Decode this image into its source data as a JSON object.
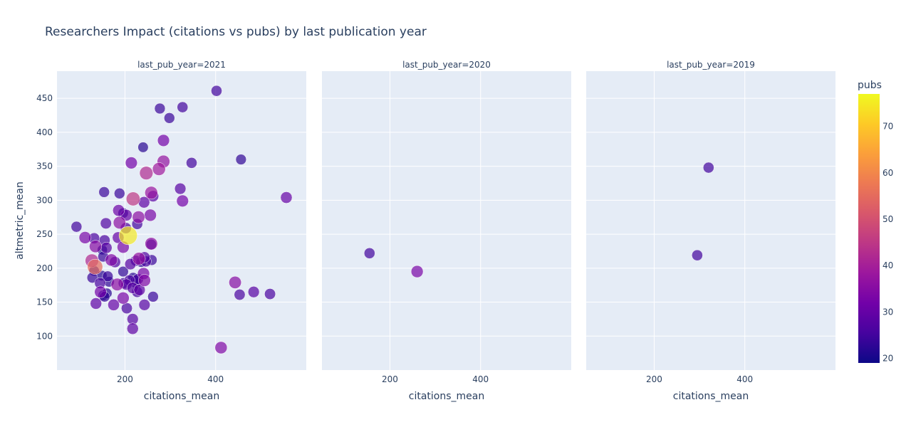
{
  "chart_data": {
    "type": "scatter",
    "title": "Researchers Impact (citations vs pubs) by last publication year",
    "xlabel": "citations_mean",
    "ylabel": "altmetric_mean",
    "xlim": [
      50,
      600
    ],
    "ylim": [
      50,
      490
    ],
    "x_ticks": [
      200,
      400
    ],
    "y_ticks": [
      100,
      150,
      200,
      250,
      300,
      350,
      400,
      450
    ],
    "grid": true,
    "colorbar": {
      "title": "pubs",
      "min": 19,
      "max": 77,
      "ticks": [
        20,
        30,
        40,
        50,
        60,
        70
      ]
    },
    "colorscale": [
      "#0d0887",
      "#46039f",
      "#7201a8",
      "#9c179e",
      "#bd3786",
      "#d8576b",
      "#ed7953",
      "#fb9f3a",
      "#fdca26",
      "#f0f921"
    ],
    "facets": [
      {
        "title": "last_pub_year=2021",
        "points": [
          {
            "x": 402,
            "y": 461,
            "pubs": 25
          },
          {
            "x": 277,
            "y": 435,
            "pubs": 24
          },
          {
            "x": 327,
            "y": 437,
            "pubs": 25
          },
          {
            "x": 298,
            "y": 421,
            "pubs": 24
          },
          {
            "x": 285,
            "y": 388,
            "pubs": 32
          },
          {
            "x": 240,
            "y": 378,
            "pubs": 22
          },
          {
            "x": 456,
            "y": 360,
            "pubs": 23
          },
          {
            "x": 285,
            "y": 357,
            "pubs": 37
          },
          {
            "x": 347,
            "y": 355,
            "pubs": 25
          },
          {
            "x": 214,
            "y": 355,
            "pubs": 32
          },
          {
            "x": 275,
            "y": 346,
            "pubs": 39
          },
          {
            "x": 247,
            "y": 340,
            "pubs": 42
          },
          {
            "x": 154,
            "y": 312,
            "pubs": 24
          },
          {
            "x": 188,
            "y": 310,
            "pubs": 24
          },
          {
            "x": 322,
            "y": 317,
            "pubs": 28
          },
          {
            "x": 258,
            "y": 311,
            "pubs": 38
          },
          {
            "x": 262,
            "y": 306,
            "pubs": 28
          },
          {
            "x": 218,
            "y": 302,
            "pubs": 45
          },
          {
            "x": 556,
            "y": 304,
            "pubs": 30
          },
          {
            "x": 327,
            "y": 299,
            "pubs": 32
          },
          {
            "x": 242,
            "y": 297,
            "pubs": 29
          },
          {
            "x": 186,
            "y": 285,
            "pubs": 31
          },
          {
            "x": 196,
            "y": 281,
            "pubs": 22
          },
          {
            "x": 203,
            "y": 278,
            "pubs": 30
          },
          {
            "x": 230,
            "y": 275,
            "pubs": 36
          },
          {
            "x": 256,
            "y": 278,
            "pubs": 33
          },
          {
            "x": 188,
            "y": 267,
            "pubs": 36
          },
          {
            "x": 158,
            "y": 266,
            "pubs": 27
          },
          {
            "x": 227,
            "y": 265,
            "pubs": 25
          },
          {
            "x": 93,
            "y": 261,
            "pubs": 25
          },
          {
            "x": 202,
            "y": 259,
            "pubs": 27
          },
          {
            "x": 112,
            "y": 245,
            "pubs": 33
          },
          {
            "x": 132,
            "y": 244,
            "pubs": 26
          },
          {
            "x": 185,
            "y": 245,
            "pubs": 30
          },
          {
            "x": 207,
            "y": 248,
            "pubs": 75
          },
          {
            "x": 155,
            "y": 241,
            "pubs": 26
          },
          {
            "x": 258,
            "y": 236,
            "pubs": 36
          },
          {
            "x": 258,
            "y": 235,
            "pubs": 22
          },
          {
            "x": 135,
            "y": 232,
            "pubs": 35
          },
          {
            "x": 159,
            "y": 230,
            "pubs": 28
          },
          {
            "x": 196,
            "y": 231,
            "pubs": 33
          },
          {
            "x": 150,
            "y": 227,
            "pubs": 20
          },
          {
            "x": 152,
            "y": 217,
            "pubs": 24
          },
          {
            "x": 127,
            "y": 211,
            "pubs": 42
          },
          {
            "x": 170,
            "y": 212,
            "pubs": 34
          },
          {
            "x": 224,
            "y": 211,
            "pubs": 25
          },
          {
            "x": 231,
            "y": 214,
            "pubs": 37
          },
          {
            "x": 243,
            "y": 216,
            "pubs": 27
          },
          {
            "x": 259,
            "y": 212,
            "pubs": 24
          },
          {
            "x": 236,
            "y": 209,
            "pubs": 22
          },
          {
            "x": 246,
            "y": 210,
            "pubs": 26
          },
          {
            "x": 178,
            "y": 209,
            "pubs": 27
          },
          {
            "x": 212,
            "y": 206,
            "pubs": 28
          },
          {
            "x": 134,
            "y": 202,
            "pubs": 55
          },
          {
            "x": 132,
            "y": 196,
            "pubs": 22
          },
          {
            "x": 196,
            "y": 195,
            "pubs": 23
          },
          {
            "x": 128,
            "y": 186,
            "pubs": 24
          },
          {
            "x": 149,
            "y": 189,
            "pubs": 22
          },
          {
            "x": 162,
            "y": 188,
            "pubs": 24
          },
          {
            "x": 241,
            "y": 192,
            "pubs": 33
          },
          {
            "x": 218,
            "y": 186,
            "pubs": 22
          },
          {
            "x": 224,
            "y": 182,
            "pubs": 24
          },
          {
            "x": 229,
            "y": 184,
            "pubs": 25
          },
          {
            "x": 210,
            "y": 182,
            "pubs": 26
          },
          {
            "x": 243,
            "y": 182,
            "pubs": 34
          },
          {
            "x": 145,
            "y": 178,
            "pubs": 26
          },
          {
            "x": 165,
            "y": 180,
            "pubs": 23
          },
          {
            "x": 183,
            "y": 176,
            "pubs": 36
          },
          {
            "x": 197,
            "y": 178,
            "pubs": 25
          },
          {
            "x": 203,
            "y": 176,
            "pubs": 28
          },
          {
            "x": 224,
            "y": 178,
            "pubs": 22
          },
          {
            "x": 443,
            "y": 179,
            "pubs": 35
          },
          {
            "x": 217,
            "y": 171,
            "pubs": 28
          },
          {
            "x": 146,
            "y": 165,
            "pubs": 32
          },
          {
            "x": 160,
            "y": 163,
            "pubs": 22
          },
          {
            "x": 227,
            "y": 165,
            "pubs": 25
          },
          {
            "x": 232,
            "y": 168,
            "pubs": 29
          },
          {
            "x": 155,
            "y": 158,
            "pubs": 23
          },
          {
            "x": 152,
            "y": 160,
            "pubs": 21
          },
          {
            "x": 196,
            "y": 156,
            "pubs": 33
          },
          {
            "x": 262,
            "y": 158,
            "pubs": 24
          },
          {
            "x": 453,
            "y": 161,
            "pubs": 26
          },
          {
            "x": 484,
            "y": 165,
            "pubs": 28
          },
          {
            "x": 520,
            "y": 162,
            "pubs": 26
          },
          {
            "x": 136,
            "y": 148,
            "pubs": 29
          },
          {
            "x": 175,
            "y": 146,
            "pubs": 30
          },
          {
            "x": 243,
            "y": 146,
            "pubs": 28
          },
          {
            "x": 204,
            "y": 141,
            "pubs": 26
          },
          {
            "x": 217,
            "y": 125,
            "pubs": 28
          },
          {
            "x": 217,
            "y": 111,
            "pubs": 29
          },
          {
            "x": 412,
            "y": 83,
            "pubs": 34
          }
        ]
      },
      {
        "title": "last_pub_year=2020",
        "points": [
          {
            "x": 155,
            "y": 222,
            "pubs": 25
          },
          {
            "x": 260,
            "y": 195,
            "pubs": 33
          }
        ]
      },
      {
        "title": "last_pub_year=2019",
        "points": [
          {
            "x": 320,
            "y": 348,
            "pubs": 25
          },
          {
            "x": 295,
            "y": 219,
            "pubs": 25
          }
        ]
      }
    ]
  }
}
